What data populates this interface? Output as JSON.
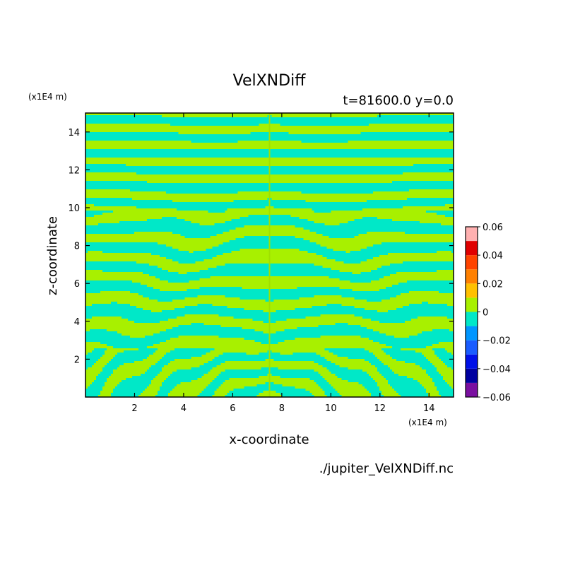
{
  "chart_data": {
    "type": "heatmap",
    "title": "VelXNDiff",
    "subtitle": "t=81600.0 y=0.0",
    "xlabel": "x-coordinate",
    "ylabel": "z-coordinate",
    "x_unit": "(x1E4 m)",
    "y_unit": "(x1E4 m)",
    "xlim": [
      0,
      15
    ],
    "ylim": [
      0,
      15
    ],
    "x_ticks": [
      2,
      4,
      6,
      8,
      10,
      12,
      14
    ],
    "y_ticks": [
      2,
      4,
      6,
      8,
      10,
      12,
      14
    ],
    "x_tick_labels": [
      "2",
      "4",
      "6",
      "8",
      "10",
      "12",
      "14"
    ],
    "y_tick_labels": [
      "2",
      "4",
      "6",
      "8",
      "10",
      "12",
      "14"
    ],
    "symmetry_axis_x": 7.5,
    "field_description": "alternating horizontal bands of slightly positive (green-yellow) and slightly negative (cyan) values; mirror symmetric about x=7.5",
    "colorbar": {
      "levels": [
        -0.06,
        -0.05,
        -0.04,
        -0.03,
        -0.02,
        -0.01,
        0,
        0.01,
        0.02,
        0.03,
        0.04,
        0.05,
        0.06
      ],
      "tick_values": [
        -0.06,
        -0.04,
        -0.02,
        0,
        0.02,
        0.04,
        0.06
      ],
      "tick_labels": [
        "−0.06",
        "−0.04",
        "−0.02",
        "0",
        "0.02",
        "0.04",
        "0.06"
      ],
      "colors": [
        "#7a0fa0",
        "#0000a0",
        "#0010e8",
        "#1a5cff",
        "#0096ff",
        "#00e8c8",
        "#a8f000",
        "#ffc000",
        "#ff8000",
        "#ff4400",
        "#e00000",
        "#ffb0b0"
      ]
    },
    "grid": false,
    "legend": "colorbar-right"
  },
  "file_label": "./jupiter_VelXNDiff.nc"
}
